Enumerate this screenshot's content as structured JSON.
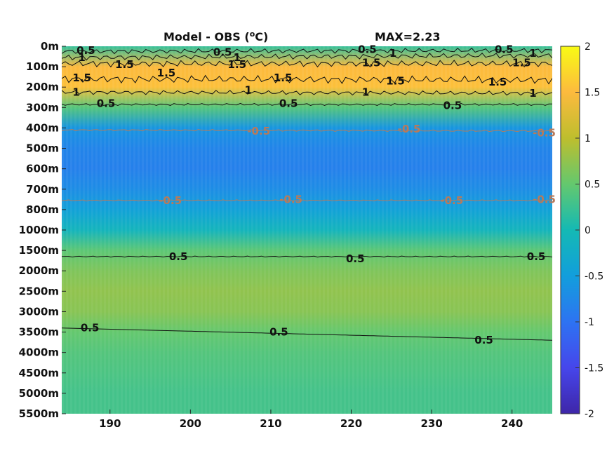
{
  "chart_data": {
    "type": "heatmap",
    "title": "Model - OBS (",
    "title_unit_sup": "o",
    "title_unit_tail": "C)",
    "max_label": "MAX=2.23",
    "x": {
      "ticks": [
        190,
        200,
        210,
        220,
        230,
        240
      ],
      "range": [
        184,
        245
      ]
    },
    "y": {
      "ticks": [
        "0m",
        "100m",
        "200m",
        "300m",
        "400m",
        "500m",
        "600m",
        "700m",
        "800m",
        "1000m",
        "1500m",
        "2000m",
        "2500m",
        "3000m",
        "3500m",
        "4000m",
        "4500m",
        "5000m",
        "5500m"
      ],
      "reversed": true
    },
    "colorbar": {
      "ticks": [
        "2",
        "1.5",
        "1",
        "0.5",
        "0",
        "-0.5",
        "-1",
        "-1.5",
        "-2"
      ],
      "range": [
        -2,
        2
      ],
      "colormap": "parula"
    },
    "depth_profile": [
      {
        "depth": "0m",
        "value": 0.2
      },
      {
        "depth": "100m",
        "value": 1.5
      },
      {
        "depth": "200m",
        "value": 1.55
      },
      {
        "depth": "300m",
        "value": 0.4
      },
      {
        "depth": "400m",
        "value": -0.6
      },
      {
        "depth": "500m",
        "value": -0.8
      },
      {
        "depth": "600m",
        "value": -0.85
      },
      {
        "depth": "700m",
        "value": -0.7
      },
      {
        "depth": "800m",
        "value": -0.45
      },
      {
        "depth": "1000m",
        "value": -0.1
      },
      {
        "depth": "1500m",
        "value": 0.45
      },
      {
        "depth": "2000m",
        "value": 0.65
      },
      {
        "depth": "2500m",
        "value": 0.75
      },
      {
        "depth": "3000m",
        "value": 0.7
      },
      {
        "depth": "3500m",
        "value": 0.5
      },
      {
        "depth": "4000m",
        "value": 0.4
      },
      {
        "depth": "4500m",
        "value": 0.35
      },
      {
        "depth": "5000m",
        "value": 0.3
      },
      {
        "depth": "5500m",
        "value": 0.3
      }
    ],
    "contour_labels": [
      {
        "text": "0.5",
        "x": 187,
        "depth_index": 0.2,
        "negative": false
      },
      {
        "text": "0.5",
        "x": 204,
        "depth_index": 0.3,
        "negative": false
      },
      {
        "text": "0.5",
        "x": 222,
        "depth_index": 0.15,
        "negative": false
      },
      {
        "text": "0.5",
        "x": 239,
        "depth_index": 0.15,
        "negative": false
      },
      {
        "text": "1",
        "x": 186.5,
        "depth_index": 0.55,
        "negative": false
      },
      {
        "text": "1",
        "x": 205.8,
        "depth_index": 0.55,
        "negative": false
      },
      {
        "text": "1",
        "x": 225.2,
        "depth_index": 0.35,
        "negative": false
      },
      {
        "text": "1",
        "x": 242.6,
        "depth_index": 0.35,
        "negative": false
      },
      {
        "text": "1.5",
        "x": 191.8,
        "depth_index": 0.9,
        "negative": false
      },
      {
        "text": "1.5",
        "x": 205.8,
        "depth_index": 0.9,
        "negative": false
      },
      {
        "text": "1.5",
        "x": 222.5,
        "depth_index": 0.8,
        "negative": false
      },
      {
        "text": "1.5",
        "x": 241.2,
        "depth_index": 0.8,
        "negative": false
      },
      {
        "text": "1.5",
        "x": 186.5,
        "depth_index": 1.55,
        "negative": false
      },
      {
        "text": "1.5",
        "x": 197,
        "depth_index": 1.3,
        "negative": false
      },
      {
        "text": "1.5",
        "x": 211.5,
        "depth_index": 1.55,
        "negative": false
      },
      {
        "text": "1.5",
        "x": 225.5,
        "depth_index": 1.7,
        "negative": false
      },
      {
        "text": "1.5",
        "x": 238.2,
        "depth_index": 1.75,
        "negative": false
      },
      {
        "text": "1",
        "x": 185.8,
        "depth_index": 2.25,
        "negative": false
      },
      {
        "text": "1",
        "x": 207.2,
        "depth_index": 2.15,
        "negative": false
      },
      {
        "text": "1",
        "x": 221.8,
        "depth_index": 2.25,
        "negative": false
      },
      {
        "text": "1",
        "x": 242.6,
        "depth_index": 2.3,
        "negative": false
      },
      {
        "text": "0.5",
        "x": 189.5,
        "depth_index": 2.8,
        "negative": false
      },
      {
        "text": "0.5",
        "x": 212.2,
        "depth_index": 2.8,
        "negative": false
      },
      {
        "text": "0.5",
        "x": 232.6,
        "depth_index": 2.9,
        "negative": false
      },
      {
        "text": "-0.5",
        "x": 208.5,
        "depth_index": 4.15,
        "negative": true
      },
      {
        "text": "-0.5",
        "x": 227.2,
        "depth_index": 4.05,
        "negative": true
      },
      {
        "text": "-0.5",
        "x": 244,
        "depth_index": 4.25,
        "negative": true
      },
      {
        "text": "-0.5",
        "x": 197.5,
        "depth_index": 7.55,
        "negative": true
      },
      {
        "text": "-0.5",
        "x": 212.5,
        "depth_index": 7.5,
        "negative": true
      },
      {
        "text": "-0.5",
        "x": 232.5,
        "depth_index": 7.55,
        "negative": true
      },
      {
        "text": "-0.5",
        "x": 244,
        "depth_index": 7.5,
        "negative": true
      },
      {
        "text": "0.5",
        "x": 198.5,
        "depth_index": 10.3,
        "negative": false
      },
      {
        "text": "0.5",
        "x": 220.5,
        "depth_index": 10.4,
        "negative": false
      },
      {
        "text": "0.5",
        "x": 243,
        "depth_index": 10.3,
        "negative": false
      },
      {
        "text": "0.5",
        "x": 187.5,
        "depth_index": 13.8,
        "negative": false
      },
      {
        "text": "0.5",
        "x": 211,
        "depth_index": 14.0,
        "negative": false
      },
      {
        "text": "0.5",
        "x": 236.5,
        "depth_index": 14.4,
        "negative": false
      }
    ]
  }
}
